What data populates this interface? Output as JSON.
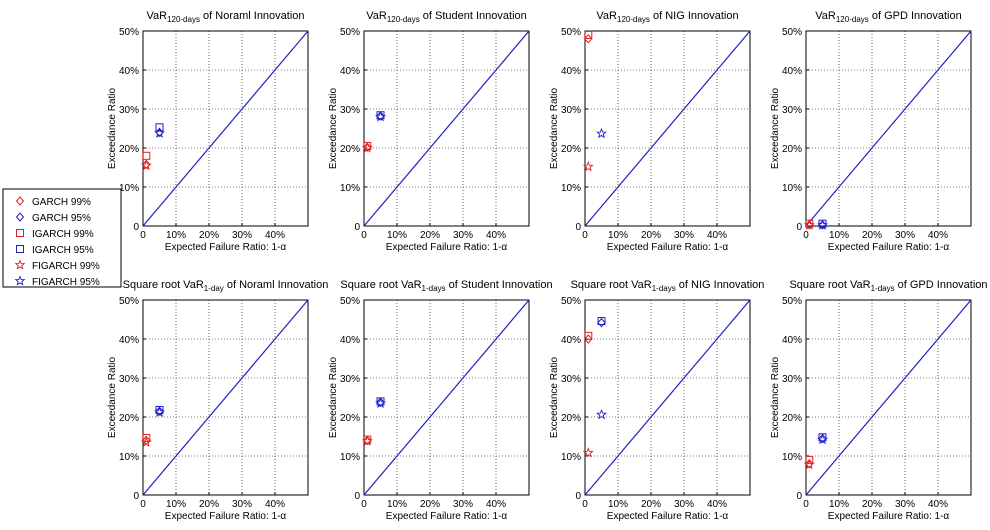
{
  "colors": {
    "red": "#e02020",
    "blue": "#2020d0",
    "diag": "#2020c0",
    "grid": "#000000"
  },
  "legend": {
    "items": [
      {
        "label": "GARCH 99%",
        "marker": "diamond",
        "color": "red"
      },
      {
        "label": "GARCH 95%",
        "marker": "diamond",
        "color": "blue"
      },
      {
        "label": "IGARCH 99%",
        "marker": "square",
        "color": "red"
      },
      {
        "label": "IGARCH 95%",
        "marker": "square",
        "color": "blue"
      },
      {
        "label": "FIGARCH 99%",
        "marker": "star",
        "color": "red"
      },
      {
        "label": "FIGARCH 95%",
        "marker": "star",
        "color": "blue"
      }
    ]
  },
  "chart_data": [
    {
      "type": "scatter",
      "title": {
        "prefix": "VaR",
        "sub": "120-days",
        "suffix": " of Noraml Innovation"
      },
      "xlabel": "Expected Failure Ratio: 1-α",
      "ylabel": "Exceedance Ratio",
      "xlim": [
        0,
        50
      ],
      "ylim": [
        0,
        50
      ],
      "grid": true,
      "reference_line": "y = x",
      "xticks": [
        "0",
        "10%",
        "20%",
        "30%",
        "40%"
      ],
      "yticks": [
        "0",
        "10%",
        "20%",
        "30%",
        "40%",
        "50%"
      ],
      "series": [
        {
          "name": "GARCH 99%",
          "x": [
            1
          ],
          "y": [
            15.8
          ]
        },
        {
          "name": "GARCH 95%",
          "x": [
            5
          ],
          "y": [
            24
          ]
        },
        {
          "name": "IGARCH 99%",
          "x": [
            1
          ],
          "y": [
            18
          ]
        },
        {
          "name": "IGARCH 95%",
          "x": [
            5
          ],
          "y": [
            25.3
          ]
        },
        {
          "name": "FIGARCH 99%",
          "x": [
            1
          ],
          "y": [
            15.5
          ]
        },
        {
          "name": "FIGARCH 95%",
          "x": [
            5
          ],
          "y": [
            23.8
          ]
        }
      ]
    },
    {
      "type": "scatter",
      "title": {
        "prefix": "VaR",
        "sub": "120-days",
        "suffix": " of Student Innovation"
      },
      "xlabel": "Expected Failure Ratio: 1-α",
      "ylabel": "Exceedance Ratio",
      "xlim": [
        0,
        50
      ],
      "ylim": [
        0,
        50
      ],
      "grid": true,
      "reference_line": "y = x",
      "xticks": [
        "0",
        "10%",
        "20%",
        "30%",
        "40%"
      ],
      "yticks": [
        "0",
        "10%",
        "20%",
        "30%",
        "40%",
        "50%"
      ],
      "series": [
        {
          "name": "GARCH 99%",
          "x": [
            1
          ],
          "y": [
            20.2
          ]
        },
        {
          "name": "GARCH 95%",
          "x": [
            5
          ],
          "y": [
            28.2
          ]
        },
        {
          "name": "IGARCH 99%",
          "x": [
            1
          ],
          "y": [
            20.5
          ]
        },
        {
          "name": "IGARCH 95%",
          "x": [
            5
          ],
          "y": [
            28.4
          ]
        },
        {
          "name": "FIGARCH 99%",
          "x": [
            1
          ],
          "y": [
            20
          ]
        },
        {
          "name": "FIGARCH 95%",
          "x": [
            5
          ],
          "y": [
            28
          ]
        }
      ]
    },
    {
      "type": "scatter",
      "title": {
        "prefix": "VaR",
        "sub": "120-days",
        "suffix": " of NIG Innovation"
      },
      "xlabel": "Expected Failure Ratio: 1-α",
      "ylabel": "Exceedance Ratio",
      "xlim": [
        0,
        50
      ],
      "ylim": [
        0,
        50
      ],
      "grid": true,
      "reference_line": "y = x",
      "xticks": [
        "0",
        "10%",
        "20%",
        "30%",
        "40%"
      ],
      "yticks": [
        "0",
        "10%",
        "20%",
        "30%",
        "40%",
        "50%"
      ],
      "series": [
        {
          "name": "GARCH 99%",
          "x": [
            1
          ],
          "y": [
            48
          ]
        },
        {
          "name": "IGARCH 99%",
          "x": [
            1
          ],
          "y": [
            49
          ]
        },
        {
          "name": "FIGARCH 99%",
          "x": [
            1
          ],
          "y": [
            15.2
          ]
        },
        {
          "name": "FIGARCH 95%",
          "x": [
            5
          ],
          "y": [
            23.7
          ]
        }
      ]
    },
    {
      "type": "scatter",
      "title": {
        "prefix": "VaR",
        "sub": "120-days",
        "suffix": " of GPD Innovation"
      },
      "xlabel": "Expected Failure Ratio: 1-α",
      "ylabel": "Exceedance Ratio",
      "xlim": [
        0,
        50
      ],
      "ylim": [
        0,
        50
      ],
      "grid": true,
      "reference_line": "y = x",
      "xticks": [
        "0",
        "10%",
        "20%",
        "30%",
        "40%"
      ],
      "yticks": [
        "0",
        "10%",
        "20%",
        "30%",
        "40%",
        "50%"
      ],
      "series": [
        {
          "name": "GARCH 99%",
          "x": [
            1
          ],
          "y": [
            0.3
          ]
        },
        {
          "name": "GARCH 95%",
          "x": [
            5
          ],
          "y": [
            0.3
          ]
        },
        {
          "name": "IGARCH 99%",
          "x": [
            1
          ],
          "y": [
            0.6
          ]
        },
        {
          "name": "IGARCH 95%",
          "x": [
            5
          ],
          "y": [
            0.6
          ]
        },
        {
          "name": "FIGARCH 99%",
          "x": [
            1
          ],
          "y": [
            0.2
          ]
        },
        {
          "name": "FIGARCH 95%",
          "x": [
            5
          ],
          "y": [
            0.2
          ]
        }
      ]
    },
    {
      "type": "scatter",
      "title": {
        "prefix": "Square root VaR",
        "sub": "1-day",
        "suffix": " of Noraml Innovation"
      },
      "xlabel": "Expected Failure Ratio: 1-α",
      "ylabel": "Exceedance Ratio",
      "xlim": [
        0,
        50
      ],
      "ylim": [
        0,
        50
      ],
      "grid": true,
      "reference_line": "y = x",
      "xticks": [
        "0",
        "10%",
        "20%",
        "30%",
        "40%"
      ],
      "yticks": [
        "0",
        "10%",
        "20%",
        "30%",
        "40%",
        "50%"
      ],
      "series": [
        {
          "name": "GARCH 99%",
          "x": [
            1
          ],
          "y": [
            14
          ]
        },
        {
          "name": "GARCH 95%",
          "x": [
            5
          ],
          "y": [
            21.5
          ]
        },
        {
          "name": "IGARCH 99%",
          "x": [
            1
          ],
          "y": [
            14.6
          ]
        },
        {
          "name": "IGARCH 95%",
          "x": [
            5
          ],
          "y": [
            21.8
          ]
        },
        {
          "name": "FIGARCH 99%",
          "x": [
            1
          ],
          "y": [
            13.5
          ]
        },
        {
          "name": "FIGARCH 95%",
          "x": [
            5
          ],
          "y": [
            21.2
          ]
        }
      ]
    },
    {
      "type": "scatter",
      "title": {
        "prefix": "Square root VaR",
        "sub": "1-days",
        "suffix": " of Student Innovation"
      },
      "xlabel": "Expected Failure Ratio: 1-α",
      "ylabel": "Exceedance Ratio",
      "xlim": [
        0,
        50
      ],
      "ylim": [
        0,
        50
      ],
      "grid": true,
      "reference_line": "y = x",
      "xticks": [
        "0",
        "10%",
        "20%",
        "30%",
        "40%"
      ],
      "yticks": [
        "0",
        "10%",
        "20%",
        "30%",
        "40%",
        "50%"
      ],
      "series": [
        {
          "name": "GARCH 99%",
          "x": [
            1
          ],
          "y": [
            14
          ]
        },
        {
          "name": "GARCH 95%",
          "x": [
            5
          ],
          "y": [
            23.8
          ]
        },
        {
          "name": "IGARCH 99%",
          "x": [
            1
          ],
          "y": [
            14.2
          ]
        },
        {
          "name": "IGARCH 95%",
          "x": [
            5
          ],
          "y": [
            24
          ]
        },
        {
          "name": "FIGARCH 99%",
          "x": [
            1
          ],
          "y": [
            13.8
          ]
        },
        {
          "name": "FIGARCH 95%",
          "x": [
            5
          ],
          "y": [
            23.5
          ]
        }
      ]
    },
    {
      "type": "scatter",
      "title": {
        "prefix": "Square root VaR",
        "sub": "1-days",
        "suffix": " of NIG Innovation"
      },
      "xlabel": "Expected Failure Ratio: 1-α",
      "ylabel": "Exceedance Ratio",
      "xlim": [
        0,
        50
      ],
      "ylim": [
        0,
        50
      ],
      "grid": true,
      "reference_line": "y = x",
      "xticks": [
        "0",
        "10%",
        "20%",
        "30%",
        "40%"
      ],
      "yticks": [
        "0",
        "10%",
        "20%",
        "30%",
        "40%",
        "50%"
      ],
      "series": [
        {
          "name": "GARCH 99%",
          "x": [
            1
          ],
          "y": [
            40
          ]
        },
        {
          "name": "GARCH 95%",
          "x": [
            5
          ],
          "y": [
            44.2
          ]
        },
        {
          "name": "IGARCH 99%",
          "x": [
            1
          ],
          "y": [
            40.8
          ]
        },
        {
          "name": "IGARCH 95%",
          "x": [
            5
          ],
          "y": [
            44.6
          ]
        },
        {
          "name": "FIGARCH 99%",
          "x": [
            1
          ],
          "y": [
            10.8
          ]
        },
        {
          "name": "FIGARCH 95%",
          "x": [
            5
          ],
          "y": [
            20.6
          ]
        }
      ]
    },
    {
      "type": "scatter",
      "title": {
        "prefix": "Square root VaR",
        "sub": "1-days",
        "suffix": " of GPD Innovation"
      },
      "xlabel": "Expected Failure Ratio: 1-α",
      "ylabel": "Exceedance Ratio",
      "xlim": [
        0,
        50
      ],
      "ylim": [
        0,
        50
      ],
      "grid": true,
      "reference_line": "y = x",
      "xticks": [
        "0",
        "10%",
        "20%",
        "30%",
        "40%"
      ],
      "yticks": [
        "0",
        "10%",
        "20%",
        "30%",
        "40%",
        "50%"
      ],
      "series": [
        {
          "name": "GARCH 99%",
          "x": [
            1
          ],
          "y": [
            8
          ]
        },
        {
          "name": "GARCH 95%",
          "x": [
            5
          ],
          "y": [
            14.5
          ]
        },
        {
          "name": "IGARCH 99%",
          "x": [
            1
          ],
          "y": [
            9
          ]
        },
        {
          "name": "IGARCH 95%",
          "x": [
            5
          ],
          "y": [
            14.8
          ]
        },
        {
          "name": "FIGARCH 99%",
          "x": [
            1
          ],
          "y": [
            7.8
          ]
        },
        {
          "name": "FIGARCH 95%",
          "x": [
            5
          ],
          "y": [
            14.2
          ]
        }
      ]
    }
  ]
}
